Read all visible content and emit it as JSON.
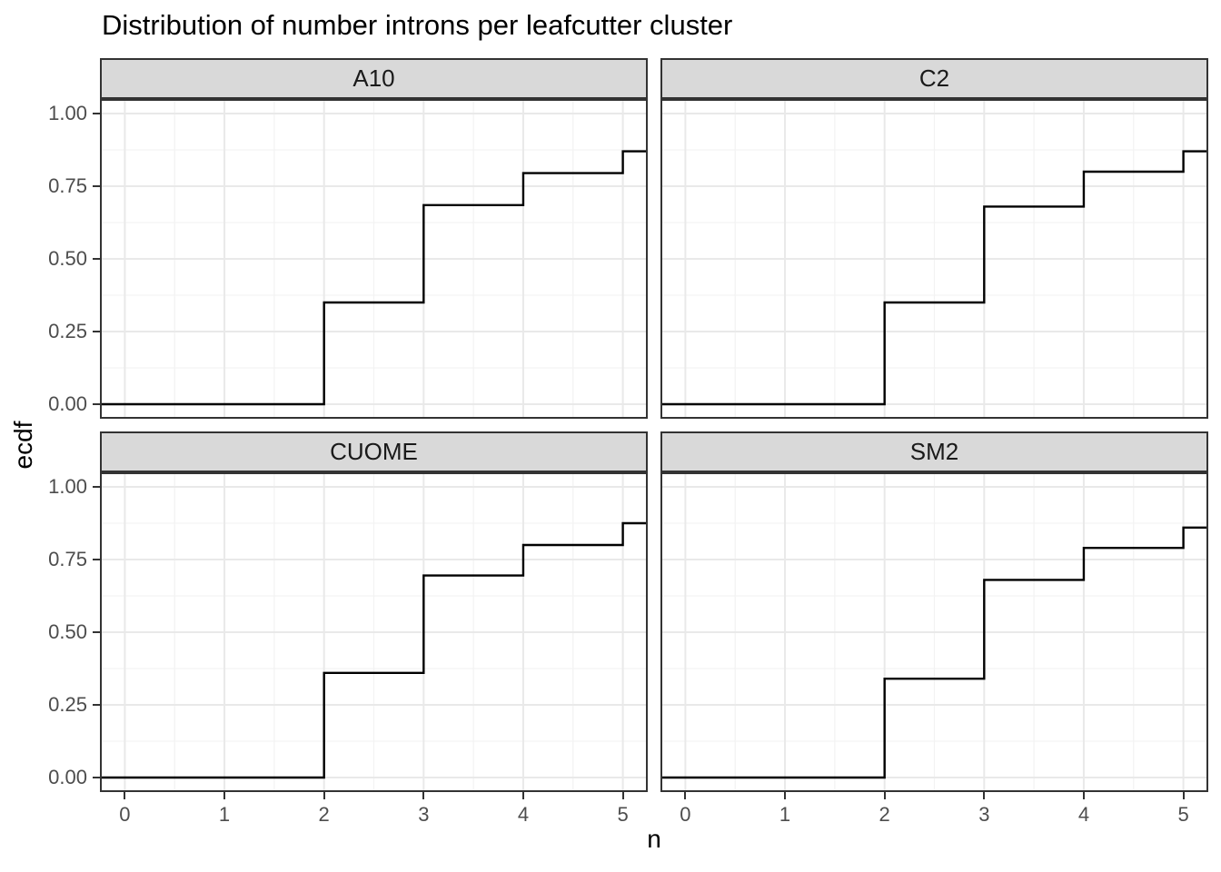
{
  "title": "Distribution of number introns per leafcutter cluster",
  "axes": {
    "x_label": "n",
    "y_label": "ecdf",
    "x_tick_labels": [
      "0",
      "1",
      "2",
      "3",
      "4",
      "5"
    ],
    "y_tick_labels": [
      "0.00",
      "0.25",
      "0.50",
      "0.75",
      "1.00"
    ]
  },
  "chart_data": {
    "type": "line",
    "variant": "ecdf-step",
    "title": "Distribution of number introns per leafcutter cluster",
    "xlabel": "n",
    "ylabel": "ecdf",
    "x_range": [
      -0.25,
      5.25
    ],
    "y_range": [
      -0.05,
      1.05
    ],
    "x_major": [
      0,
      1,
      2,
      3,
      4,
      5
    ],
    "x_minor": [
      0.5,
      1.5,
      2.5,
      3.5,
      4.5
    ],
    "y_major": [
      0,
      0.25,
      0.5,
      0.75,
      1.0
    ],
    "y_minor": [
      0.125,
      0.375,
      0.625,
      0.875
    ],
    "grid": "on",
    "legend": "none",
    "baseline": 0,
    "facets": [
      {
        "label": "A10",
        "steps": {
          "x": [
            2,
            3,
            4,
            5
          ],
          "ecdf": [
            0.35,
            0.685,
            0.795,
            0.87
          ]
        }
      },
      {
        "label": "C2",
        "steps": {
          "x": [
            2,
            3,
            4,
            5
          ],
          "ecdf": [
            0.35,
            0.68,
            0.8,
            0.87
          ]
        }
      },
      {
        "label": "CUOME",
        "steps": {
          "x": [
            2,
            3,
            4,
            5
          ],
          "ecdf": [
            0.36,
            0.695,
            0.8,
            0.875
          ]
        }
      },
      {
        "label": "SM2",
        "steps": {
          "x": [
            2,
            3,
            4,
            5
          ],
          "ecdf": [
            0.34,
            0.68,
            0.79,
            0.86
          ]
        }
      }
    ]
  },
  "colors": {
    "background": "#ffffff",
    "strip_background": "#d9d9d9",
    "panel_border": "#333333",
    "grid_major": "#e9e9e9",
    "grid_minor": "#f3f3f3",
    "ecdf_line": "#000000",
    "axis_text": "#4d4d4d",
    "text": "#000000"
  }
}
